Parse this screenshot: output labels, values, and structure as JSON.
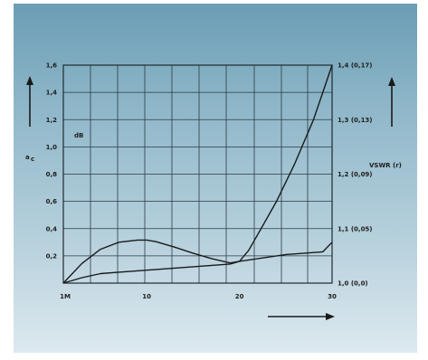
{
  "chart_data": {
    "type": "line",
    "xlabel": "",
    "left_axis": {
      "label": "a",
      "label_subscript": "c",
      "unit": "dB",
      "ticks": [
        "1,6",
        "1,4",
        "1,2",
        "1,0",
        "0,8",
        "0,6",
        "0,4",
        "0,2"
      ],
      "ylim": [
        0,
        1.6
      ]
    },
    "right_axis": {
      "label": "VSWR (r)",
      "ticks": [
        "1,4 (0,17)",
        "1,3 (0,13)",
        "1,2 (0,09)",
        "1,1 (0,05)",
        "1,0 (0,0)"
      ],
      "ylim": [
        1.0,
        1.4
      ]
    },
    "x_ticks": [
      "1M",
      "10",
      "20",
      "30"
    ],
    "xlim": [
      1,
      30
    ],
    "grid": true,
    "series": [
      {
        "axis": "left",
        "color": "#1a1a1a",
        "x": [
          1,
          3,
          5,
          7,
          9,
          11,
          13,
          15,
          17,
          19,
          20,
          21,
          23,
          25,
          27,
          29,
          30
        ],
        "y": [
          0.0,
          0.04,
          0.07,
          0.08,
          0.09,
          0.1,
          0.11,
          0.12,
          0.13,
          0.14,
          0.16,
          0.17,
          0.19,
          0.21,
          0.22,
          0.23,
          0.3
        ]
      },
      {
        "axis": "right",
        "color": "#1a1a1a",
        "x": [
          1,
          3,
          5,
          7,
          9,
          10,
          11,
          13,
          15,
          17,
          19,
          20,
          21,
          22,
          24,
          26,
          28,
          30
        ],
        "y": [
          1.0,
          1.036,
          1.062,
          1.075,
          1.079,
          1.079,
          1.076,
          1.066,
          1.055,
          1.045,
          1.037,
          1.04,
          1.06,
          1.09,
          1.15,
          1.22,
          1.3,
          1.4
        ]
      }
    ]
  }
}
